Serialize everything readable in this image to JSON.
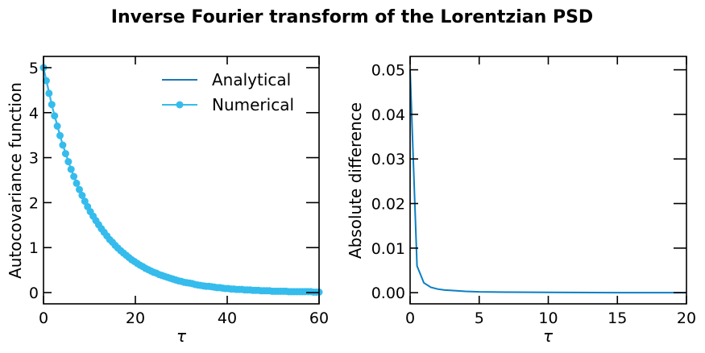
{
  "title": "Inverse Fourier transform of the Lorentzian PSD",
  "colors": {
    "analytical": "#1f77b4",
    "numerical": "#35bced",
    "difference": "#0a7fc2"
  },
  "chart_data": [
    {
      "type": "line",
      "xlabel": "τ",
      "ylabel": "Autocovariance function",
      "xlim": [
        0,
        60
      ],
      "ylim": [
        -0.25,
        5.25
      ],
      "xticks": [
        0,
        20,
        40,
        60
      ],
      "yticks": [
        0,
        1,
        2,
        3,
        4,
        5
      ],
      "xtick_labels": [
        "0",
        "20",
        "40",
        "60"
      ],
      "ytick_labels": [
        "0",
        "1",
        "2",
        "3",
        "4",
        "5"
      ],
      "grid": false,
      "legend_position": "top-right",
      "series": [
        {
          "name": "Analytical",
          "style": "line",
          "x": [
            0,
            2,
            4,
            6,
            8,
            10,
            12,
            14,
            16,
            18,
            20,
            22,
            24,
            26,
            28,
            30,
            32,
            34,
            36,
            38,
            40,
            42,
            44,
            46,
            48,
            50,
            52,
            54,
            56,
            58,
            60
          ],
          "y": [
            5.0,
            4.09,
            3.35,
            2.74,
            2.25,
            1.84,
            1.51,
            1.23,
            1.01,
            0.83,
            0.68,
            0.55,
            0.45,
            0.37,
            0.3,
            0.25,
            0.2,
            0.17,
            0.14,
            0.11,
            0.09,
            0.07,
            0.06,
            0.05,
            0.04,
            0.03,
            0.03,
            0.02,
            0.02,
            0.02,
            0.01
          ]
        },
        {
          "name": "Numerical",
          "style": "line-marker",
          "x": [
            0,
            0.6,
            1.2,
            1.8,
            2.4,
            3.0,
            3.6,
            4.2,
            4.8,
            5.4,
            6.0,
            6.6,
            7.2,
            7.8,
            8.4,
            9.0,
            9.6,
            10.2,
            10.8,
            11.4,
            12.0,
            12.6,
            13.2,
            13.8,
            14.4,
            15.0,
            15.6,
            16.2,
            16.8,
            17.4,
            18.0,
            18.6,
            19.2,
            19.8,
            20.4,
            21.0,
            21.6,
            22.2,
            22.8,
            23.4,
            24.0,
            24.6,
            25.2,
            25.8,
            26.4,
            27.0,
            27.6,
            28.2,
            28.8,
            29.4,
            30.0,
            30.6,
            31.2,
            31.8,
            32.4,
            33.0,
            33.6,
            34.2,
            34.8,
            35.4,
            36.0,
            36.6,
            37.2,
            37.8,
            38.4,
            39.0,
            39.6,
            40.2,
            40.8,
            41.4,
            42.0,
            42.6,
            43.2,
            43.8,
            44.4,
            45.0,
            45.6,
            46.2,
            46.8,
            47.4,
            48.0,
            48.6,
            49.2,
            49.8,
            50.4,
            51.0,
            51.6,
            52.2,
            52.8,
            53.4,
            54.0,
            54.6,
            55.2,
            55.8,
            56.4,
            57.0,
            57.6,
            58.2,
            58.8,
            59.4,
            60.0
          ],
          "y": [
            5.0,
            4.71,
            4.43,
            4.18,
            3.93,
            3.7,
            3.49,
            3.28,
            3.09,
            2.91,
            2.74,
            2.58,
            2.43,
            2.29,
            2.16,
            2.03,
            1.91,
            1.8,
            1.7,
            1.6,
            1.51,
            1.42,
            1.34,
            1.26,
            1.18,
            1.12,
            1.05,
            0.99,
            0.93,
            0.88,
            0.83,
            0.78,
            0.73,
            0.69,
            0.65,
            0.61,
            0.58,
            0.54,
            0.51,
            0.48,
            0.45,
            0.43,
            0.4,
            0.38,
            0.36,
            0.34,
            0.32,
            0.3,
            0.28,
            0.26,
            0.25,
            0.23,
            0.22,
            0.21,
            0.2,
            0.18,
            0.17,
            0.16,
            0.15,
            0.14,
            0.14,
            0.13,
            0.12,
            0.11,
            0.11,
            0.1,
            0.09,
            0.09,
            0.08,
            0.08,
            0.07,
            0.07,
            0.07,
            0.06,
            0.06,
            0.06,
            0.05,
            0.05,
            0.05,
            0.04,
            0.04,
            0.04,
            0.04,
            0.03,
            0.03,
            0.03,
            0.03,
            0.03,
            0.03,
            0.02,
            0.02,
            0.02,
            0.02,
            0.02,
            0.02,
            0.02,
            0.02,
            0.02,
            0.01,
            0.01,
            0.01
          ]
        }
      ]
    },
    {
      "type": "line",
      "xlabel": "τ",
      "ylabel": "Absolute difference",
      "xlim": [
        0,
        20
      ],
      "ylim": [
        -0.0025,
        0.053
      ],
      "xticks": [
        0,
        5,
        10,
        15,
        20
      ],
      "yticks": [
        0.0,
        0.01,
        0.02,
        0.03,
        0.04,
        0.05
      ],
      "xtick_labels": [
        "0",
        "5",
        "10",
        "15",
        "20"
      ],
      "ytick_labels": [
        "0.00",
        "0.01",
        "0.02",
        "0.03",
        "0.04",
        "0.05"
      ],
      "grid": false,
      "series": [
        {
          "style": "line",
          "x": [
            0,
            0.5,
            1.0,
            1.5,
            2.0,
            2.5,
            3.0,
            4.0,
            5.0,
            7.0,
            10.0,
            15.0,
            20.0
          ],
          "y": [
            0.05,
            0.006,
            0.0022,
            0.0012,
            0.0008,
            0.0006,
            0.0005,
            0.0003,
            0.0002,
            0.00012,
            6e-05,
            2e-05,
            1e-05
          ]
        }
      ]
    }
  ]
}
